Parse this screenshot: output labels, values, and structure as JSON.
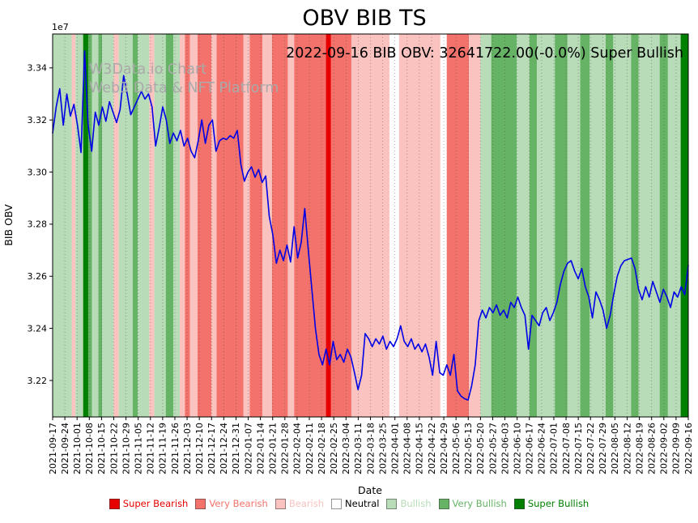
{
  "title": "OBV BIB TS",
  "subtitle": "2022-09-16 BIB OBV: 32641722.00(-0.0%) Super Bullish",
  "watermark": {
    "line1": "W3Data.io Chart",
    "line2": "Web3 Data & NFT Platform"
  },
  "chart_data": {
    "type": "line",
    "title": "OBV BIB TS",
    "xlabel": "Date",
    "ylabel": "BIB OBV",
    "y_offset_label": "1e7",
    "x_range": [
      "2021-09-17",
      "2022-09-16"
    ],
    "ylim": [
      32060000,
      33530000
    ],
    "y_ticks": [
      32200000,
      32400000,
      32600000,
      32800000,
      33000000,
      33200000,
      33400000
    ],
    "grid": "vertical-dotted",
    "x_tick_labels": [
      "2021-09-17",
      "2021-09-24",
      "2021-10-01",
      "2021-10-08",
      "2021-10-15",
      "2021-10-22",
      "2021-10-29",
      "2021-11-05",
      "2021-11-12",
      "2021-11-19",
      "2021-11-26",
      "2021-12-03",
      "2021-12-10",
      "2021-12-17",
      "2021-12-24",
      "2021-12-31",
      "2022-01-07",
      "2022-01-14",
      "2022-01-21",
      "2022-01-28",
      "2022-02-04",
      "2022-02-11",
      "2022-02-18",
      "2022-02-25",
      "2022-03-04",
      "2022-03-11",
      "2022-03-18",
      "2022-03-25",
      "2022-04-01",
      "2022-04-08",
      "2022-04-15",
      "2022-04-22",
      "2022-04-29",
      "2022-05-06",
      "2022-05-13",
      "2022-05-20",
      "2022-05-27",
      "2022-06-03",
      "2022-06-10",
      "2022-06-17",
      "2022-06-24",
      "2022-07-01",
      "2022-07-08",
      "2022-07-15",
      "2022-07-22",
      "2022-07-29",
      "2022-08-05",
      "2022-08-12",
      "2022-08-19",
      "2022-08-26",
      "2022-09-02",
      "2022-09-09",
      "2022-09-16"
    ],
    "series": [
      {
        "name": "BIB OBV",
        "color": "#0000e6",
        "values": [
          33150000,
          33250000,
          33320000,
          33180000,
          33300000,
          33215000,
          33260000,
          33180000,
          33075000,
          33465000,
          33180000,
          33080000,
          33230000,
          33180000,
          33250000,
          33195000,
          33270000,
          33230000,
          33190000,
          33240000,
          33370000,
          33300000,
          33220000,
          33250000,
          33280000,
          33310000,
          33280000,
          33300000,
          33250000,
          33100000,
          33170000,
          33250000,
          33200000,
          33110000,
          33150000,
          33120000,
          33160000,
          33100000,
          33130000,
          33080000,
          33055000,
          33120000,
          33200000,
          33110000,
          33180000,
          33200000,
          33080000,
          33120000,
          33130000,
          33125000,
          33140000,
          33130000,
          33160000,
          33030000,
          32965000,
          33000000,
          33020000,
          32980000,
          33010000,
          32960000,
          32985000,
          32830000,
          32760000,
          32650000,
          32700000,
          32660000,
          32720000,
          32655000,
          32790000,
          32670000,
          32730000,
          32860000,
          32700000,
          32550000,
          32400000,
          32300000,
          32260000,
          32320000,
          32260000,
          32350000,
          32280000,
          32300000,
          32270000,
          32320000,
          32290000,
          32230000,
          32165000,
          32220000,
          32380000,
          32360000,
          32330000,
          32360000,
          32340000,
          32370000,
          32320000,
          32350000,
          32330000,
          32360000,
          32410000,
          32350000,
          32330000,
          32360000,
          32320000,
          32340000,
          32310000,
          32340000,
          32290000,
          32220000,
          32350000,
          32230000,
          32220000,
          32260000,
          32220000,
          32300000,
          32160000,
          32140000,
          32130000,
          32125000,
          32180000,
          32260000,
          32430000,
          32470000,
          32440000,
          32480000,
          32460000,
          32490000,
          32450000,
          32470000,
          32440000,
          32500000,
          32480000,
          32520000,
          32480000,
          32450000,
          32320000,
          32450000,
          32430000,
          32410000,
          32460000,
          32480000,
          32430000,
          32460000,
          32500000,
          32570000,
          32620000,
          32650000,
          32660000,
          32620000,
          32590000,
          32630000,
          32560000,
          32520000,
          32440000,
          32540000,
          32510000,
          32470000,
          32400000,
          32450000,
          32530000,
          32600000,
          32640000,
          32660000,
          32665000,
          32670000,
          32630000,
          32550000,
          32510000,
          32560000,
          32520000,
          32580000,
          32540000,
          32500000,
          32550000,
          32520000,
          32480000,
          32540000,
          32520000,
          32560000,
          32530000,
          32641722
        ]
      }
    ],
    "sentiment_colors": {
      "super_bearish": "#e60000",
      "very_bearish": "#f4726c",
      "bearish": "#fac3c0",
      "neutral": "#ffffff",
      "bullish": "#b7dcb7",
      "very_bullish": "#66b366",
      "super_bullish": "#008000"
    },
    "sentiment_bands": [
      {
        "start": 0.0,
        "end": 0.03,
        "level": "bullish"
      },
      {
        "start": 0.03,
        "end": 0.036,
        "level": "bearish"
      },
      {
        "start": 0.036,
        "end": 0.048,
        "level": "bullish"
      },
      {
        "start": 0.048,
        "end": 0.056,
        "level": "super_bullish"
      },
      {
        "start": 0.056,
        "end": 0.062,
        "level": "very_bullish"
      },
      {
        "start": 0.062,
        "end": 0.072,
        "level": "bullish"
      },
      {
        "start": 0.072,
        "end": 0.078,
        "level": "very_bullish"
      },
      {
        "start": 0.078,
        "end": 0.096,
        "level": "bullish"
      },
      {
        "start": 0.096,
        "end": 0.104,
        "level": "bearish"
      },
      {
        "start": 0.104,
        "end": 0.126,
        "level": "bullish"
      },
      {
        "start": 0.126,
        "end": 0.134,
        "level": "very_bullish"
      },
      {
        "start": 0.134,
        "end": 0.152,
        "level": "bullish"
      },
      {
        "start": 0.152,
        "end": 0.16,
        "level": "bearish"
      },
      {
        "start": 0.16,
        "end": 0.178,
        "level": "bullish"
      },
      {
        "start": 0.178,
        "end": 0.19,
        "level": "very_bullish"
      },
      {
        "start": 0.19,
        "end": 0.2,
        "level": "bullish"
      },
      {
        "start": 0.2,
        "end": 0.208,
        "level": "bearish"
      },
      {
        "start": 0.208,
        "end": 0.216,
        "level": "very_bearish"
      },
      {
        "start": 0.216,
        "end": 0.228,
        "level": "bearish"
      },
      {
        "start": 0.228,
        "end": 0.25,
        "level": "very_bearish"
      },
      {
        "start": 0.25,
        "end": 0.258,
        "level": "bearish"
      },
      {
        "start": 0.258,
        "end": 0.3,
        "level": "very_bearish"
      },
      {
        "start": 0.3,
        "end": 0.31,
        "level": "bearish"
      },
      {
        "start": 0.31,
        "end": 0.33,
        "level": "very_bearish"
      },
      {
        "start": 0.33,
        "end": 0.345,
        "level": "bearish"
      },
      {
        "start": 0.345,
        "end": 0.37,
        "level": "very_bearish"
      },
      {
        "start": 0.37,
        "end": 0.38,
        "level": "bearish"
      },
      {
        "start": 0.38,
        "end": 0.43,
        "level": "very_bearish"
      },
      {
        "start": 0.43,
        "end": 0.438,
        "level": "super_bearish"
      },
      {
        "start": 0.438,
        "end": 0.47,
        "level": "very_bearish"
      },
      {
        "start": 0.47,
        "end": 0.53,
        "level": "bearish"
      },
      {
        "start": 0.53,
        "end": 0.545,
        "level": "neutral"
      },
      {
        "start": 0.545,
        "end": 0.61,
        "level": "bearish"
      },
      {
        "start": 0.61,
        "end": 0.62,
        "level": "neutral"
      },
      {
        "start": 0.62,
        "end": 0.655,
        "level": "very_bearish"
      },
      {
        "start": 0.655,
        "end": 0.673,
        "level": "bearish"
      },
      {
        "start": 0.673,
        "end": 0.69,
        "level": "bullish"
      },
      {
        "start": 0.69,
        "end": 0.73,
        "level": "very_bullish"
      },
      {
        "start": 0.73,
        "end": 0.75,
        "level": "bullish"
      },
      {
        "start": 0.75,
        "end": 0.762,
        "level": "very_bullish"
      },
      {
        "start": 0.762,
        "end": 0.79,
        "level": "bullish"
      },
      {
        "start": 0.79,
        "end": 0.81,
        "level": "very_bullish"
      },
      {
        "start": 0.81,
        "end": 0.83,
        "level": "bullish"
      },
      {
        "start": 0.83,
        "end": 0.845,
        "level": "very_bullish"
      },
      {
        "start": 0.845,
        "end": 0.87,
        "level": "bullish"
      },
      {
        "start": 0.87,
        "end": 0.882,
        "level": "very_bullish"
      },
      {
        "start": 0.882,
        "end": 0.91,
        "level": "bullish"
      },
      {
        "start": 0.91,
        "end": 0.922,
        "level": "very_bullish"
      },
      {
        "start": 0.922,
        "end": 0.955,
        "level": "bullish"
      },
      {
        "start": 0.955,
        "end": 0.968,
        "level": "very_bullish"
      },
      {
        "start": 0.968,
        "end": 0.988,
        "level": "bullish"
      },
      {
        "start": 0.988,
        "end": 1.0,
        "level": "super_bullish"
      }
    ],
    "legend": {
      "position": "bottom",
      "items": [
        {
          "label": "Super Bearish",
          "color": "#e60000",
          "text_color": "#e60000"
        },
        {
          "label": "Very Bearish",
          "color": "#f4726c",
          "text_color": "#f4726c"
        },
        {
          "label": "Bearish",
          "color": "#fac3c0",
          "text_color": "#fac3c0"
        },
        {
          "label": "Neutral",
          "color": "#ffffff",
          "text_color": "#000000"
        },
        {
          "label": "Bullish",
          "color": "#b7dcb7",
          "text_color": "#b7dcb7"
        },
        {
          "label": "Very Bullish",
          "color": "#66b366",
          "text_color": "#66b366"
        },
        {
          "label": "Super Bullish",
          "color": "#008000",
          "text_color": "#008000"
        }
      ]
    }
  }
}
